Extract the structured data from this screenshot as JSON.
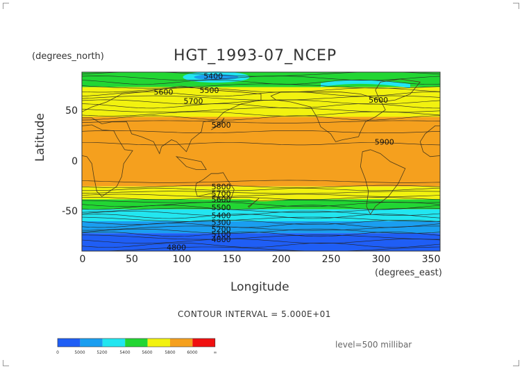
{
  "title": "HGT_1993-07_NCEP",
  "y_axis": {
    "unit": "(degrees_north)",
    "label": "Latitude",
    "ticks": [
      "50",
      "0",
      "-50"
    ]
  },
  "x_axis": {
    "unit": "(degrees_east)",
    "label": "Longitude",
    "ticks": [
      "0",
      "50",
      "100",
      "150",
      "200",
      "250",
      "300",
      "350"
    ]
  },
  "contour_interval": "CONTOUR INTERVAL = 5.000E+01",
  "level": "level=500 millibar",
  "colorbar": {
    "labels": [
      "0",
      "5000",
      "5200",
      "5400",
      "5600",
      "5800",
      "6000",
      "∞"
    ],
    "colors": [
      "#1f5ef5",
      "#1a9ef0",
      "#22e6f0",
      "#22d633",
      "#f2f20f",
      "#f5a01e",
      "#f01010"
    ]
  },
  "chart_data": {
    "type": "heatmap",
    "title": "HGT_1993-07_NCEP",
    "xlabel": "Longitude",
    "ylabel": "Latitude",
    "x_unit": "(degrees_east)",
    "y_unit": "(degrees_north)",
    "xlim": [
      0,
      360
    ],
    "ylim": [
      -90,
      90
    ],
    "level": "500 millibar",
    "contour_interval": 50,
    "zonal_bands": [
      {
        "lat_min": 75,
        "lat_max": 90,
        "range": "5400-5600",
        "color": "#22d633"
      },
      {
        "lat_min": 45,
        "lat_max": 75,
        "range": "5600-5800",
        "color": "#f2f20f"
      },
      {
        "lat_min": -25,
        "lat_max": 45,
        "range": "5800-6000",
        "color": "#f5a01e"
      },
      {
        "lat_min": -38,
        "lat_max": -25,
        "range": "5600-5800",
        "color": "#f2f20f"
      },
      {
        "lat_min": -48,
        "lat_max": -38,
        "range": "5400-5600",
        "color": "#22d633"
      },
      {
        "lat_min": -60,
        "lat_max": -48,
        "range": "5200-5400",
        "color": "#22e6f0"
      },
      {
        "lat_min": -72,
        "lat_max": -60,
        "range": "5000-5200",
        "color": "#1a9ef0"
      },
      {
        "lat_min": -90,
        "lat_max": -72,
        "range": "0-5000",
        "color": "#1f5ef5"
      }
    ],
    "contour_labels": [
      {
        "lon": 132,
        "lat": 86,
        "text": "5400"
      },
      {
        "lon": 82,
        "lat": 70,
        "text": "5600"
      },
      {
        "lon": 128,
        "lat": 72,
        "text": "5500"
      },
      {
        "lon": 298,
        "lat": 62,
        "text": "5600"
      },
      {
        "lon": 112,
        "lat": 61,
        "text": "5700"
      },
      {
        "lon": 140,
        "lat": 37,
        "text": "5800"
      },
      {
        "lon": 304,
        "lat": 20,
        "text": "5900"
      },
      {
        "lon": 140,
        "lat": -25,
        "text": "5800"
      },
      {
        "lon": 140,
        "lat": -32,
        "text": "5700"
      },
      {
        "lon": 140,
        "lat": -38,
        "text": "5600"
      },
      {
        "lon": 140,
        "lat": -46,
        "text": "5500"
      },
      {
        "lon": 140,
        "lat": -54,
        "text": "5400"
      },
      {
        "lon": 140,
        "lat": -61,
        "text": "5300"
      },
      {
        "lon": 140,
        "lat": -68,
        "text": "5200"
      },
      {
        "lon": 140,
        "lat": -73,
        "text": "5100"
      },
      {
        "lon": 140,
        "lat": -78,
        "text": "4800"
      },
      {
        "lon": 95,
        "lat": -86,
        "text": "4800"
      }
    ],
    "grid": false
  }
}
